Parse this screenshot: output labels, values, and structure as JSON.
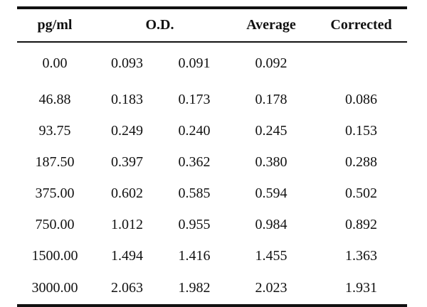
{
  "table": {
    "headers": {
      "conc": "pg/ml",
      "od": "O.D.",
      "average": "Average",
      "corrected": "Corrected"
    },
    "rows": [
      {
        "conc": "0.00",
        "od1": "0.093",
        "od2": "0.091",
        "average": "0.092",
        "corrected": ""
      },
      {
        "conc": "46.88",
        "od1": "0.183",
        "od2": "0.173",
        "average": "0.178",
        "corrected": "0.086"
      },
      {
        "conc": "93.75",
        "od1": "0.249",
        "od2": "0.240",
        "average": "0.245",
        "corrected": "0.153"
      },
      {
        "conc": "187.50",
        "od1": "0.397",
        "od2": "0.362",
        "average": "0.380",
        "corrected": "0.288"
      },
      {
        "conc": "375.00",
        "od1": "0.602",
        "od2": "0.585",
        "average": "0.594",
        "corrected": "0.502"
      },
      {
        "conc": "750.00",
        "od1": "1.012",
        "od2": "0.955",
        "average": "0.984",
        "corrected": "0.892"
      },
      {
        "conc": "1500.00",
        "od1": "1.494",
        "od2": "1.416",
        "average": "1.455",
        "corrected": "1.363"
      },
      {
        "conc": "3000.00",
        "od1": "2.063",
        "od2": "1.982",
        "average": "2.023",
        "corrected": "1.931"
      }
    ]
  }
}
